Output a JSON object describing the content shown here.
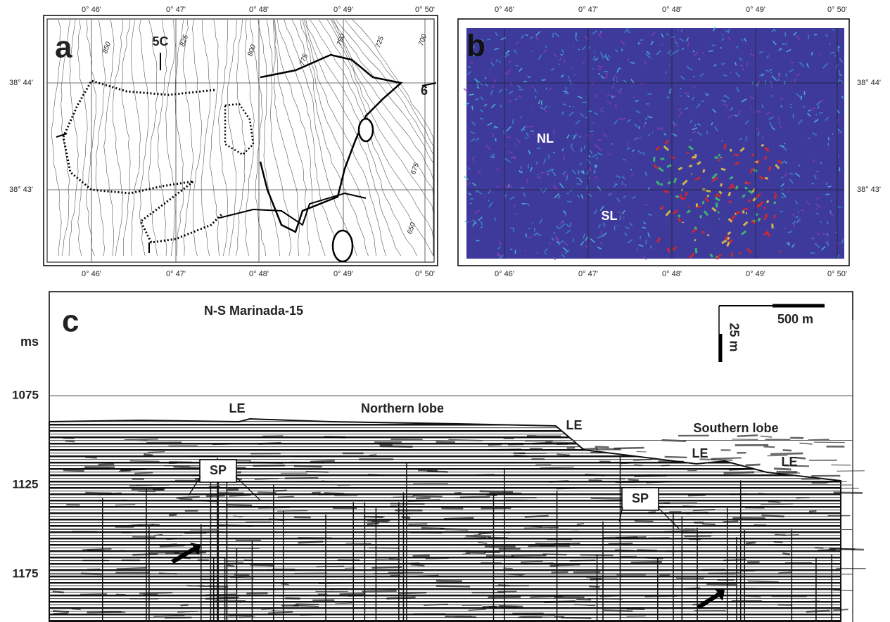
{
  "panel_a": {
    "label": "a",
    "x_ticks_top": [
      "0° 46'",
      "0° 47'",
      "0° 48'",
      "0° 49'",
      "0° 50'"
    ],
    "x_ticks_bottom": [
      "0° 46'",
      "0° 47'",
      "0° 48'",
      "0° 49'",
      "0° 50'"
    ],
    "y_ticks": [
      "38° 44'",
      "38° 43'"
    ],
    "contour_labels": [
      "850",
      "825",
      "800",
      "775",
      "750",
      "725",
      "700",
      "675",
      "650"
    ],
    "annotations": [
      "5C",
      "6"
    ]
  },
  "panel_b": {
    "label": "b",
    "x_ticks_top": [
      "0° 46'",
      "0° 47'",
      "0° 48'",
      "0° 49'",
      "0° 50'"
    ],
    "x_ticks_bottom": [
      "0° 46'",
      "0° 47'",
      "0° 48'",
      "0° 49'",
      "0° 50'"
    ],
    "y_ticks": [
      "38° 44'",
      "38° 43'"
    ],
    "annotations": [
      "NL",
      "SL"
    ]
  },
  "panel_c": {
    "label": "c",
    "title": "N-S Marinada-15",
    "axis_unit": "ms",
    "y_ticks": [
      1075,
      1125,
      1175
    ],
    "scale_horizontal": "500 m",
    "scale_vertical": "25 m",
    "annotations": [
      "LE",
      "Northern lobe",
      "LE",
      "Southern lobe",
      "LE",
      "LE",
      "SP",
      "SP"
    ]
  }
}
